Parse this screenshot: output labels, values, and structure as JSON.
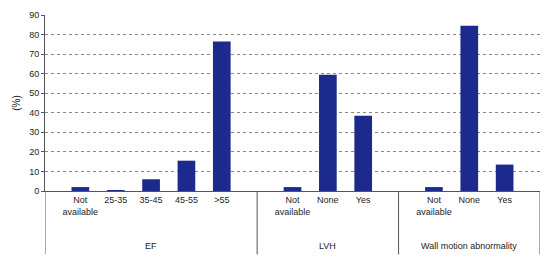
{
  "chart_data": {
    "type": "bar",
    "categories": [
      "Not available",
      "25-35",
      "35-45",
      "45-55",
      ">55",
      "Not available",
      "None",
      "Yes",
      "Not available",
      "None",
      "Yes"
    ],
    "groups": [
      "EF",
      "EF",
      "EF",
      "EF",
      "EF",
      "LVH",
      "LVH",
      "LVH",
      "Wall motion abnormality",
      "Wall motion abnormality",
      "Wall motion abnormality"
    ],
    "values": [
      2,
      0.5,
      6,
      15.5,
      76.5,
      2,
      59.5,
      38.5,
      2,
      84.5,
      13.5
    ],
    "color": "#1b2a8c",
    "ylabel": "(%)",
    "ylim": [
      0,
      90
    ],
    "yticks": [
      0,
      10,
      20,
      30,
      40,
      50,
      60,
      70,
      80,
      90
    ],
    "grid": true
  }
}
